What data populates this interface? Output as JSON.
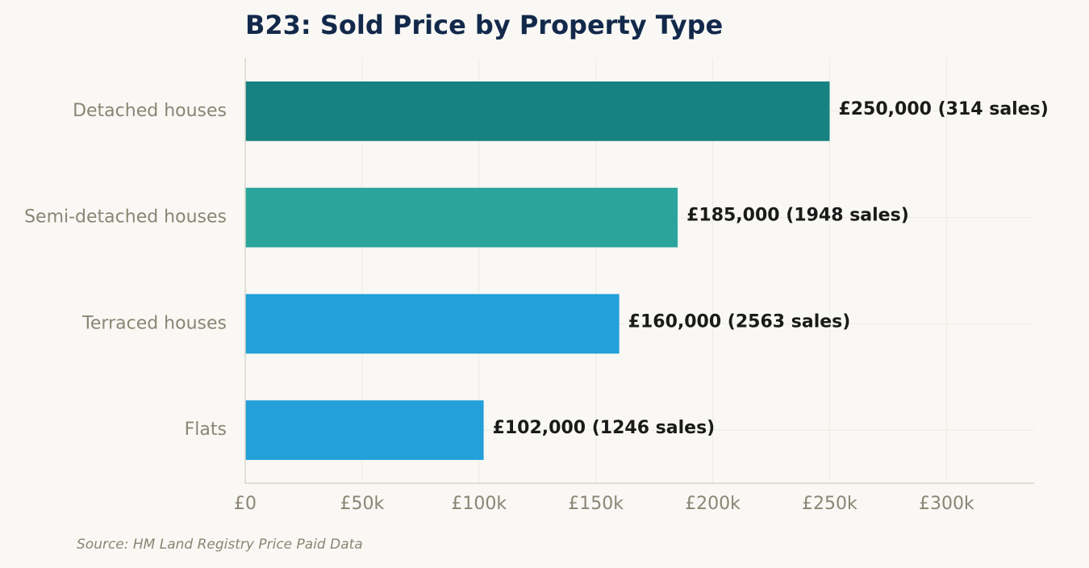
{
  "title": "B23: Sold Price by Property Type",
  "source": "Source: HM Land Registry Price Paid Data",
  "chart_data": {
    "type": "bar",
    "orientation": "horizontal",
    "title": "B23: Sold Price by Property Type",
    "categories": [
      "Detached houses",
      "Semi-detached houses",
      "Terraced houses",
      "Flats"
    ],
    "values": [
      250000,
      185000,
      160000,
      102000
    ],
    "sales": [
      314,
      1948,
      2563,
      1246
    ],
    "data_labels": [
      "£250,000  (314 sales)",
      "£185,000  (1948 sales)",
      "£160,000  (2563 sales)",
      "£102,000  (1246 sales)"
    ],
    "bar_colors": [
      "#188181",
      "#2ba59c",
      "#239fd9",
      "#239fd9"
    ],
    "xlim": [
      0,
      337500
    ],
    "xticks": [
      0,
      50000,
      100000,
      150000,
      200000,
      250000,
      300000
    ],
    "xtick_labels": [
      "£0",
      "£50k",
      "£100k",
      "£150k",
      "£200k",
      "£250k",
      "£300k"
    ],
    "xlabel": "",
    "ylabel": "",
    "grid": true,
    "legend": "none"
  }
}
